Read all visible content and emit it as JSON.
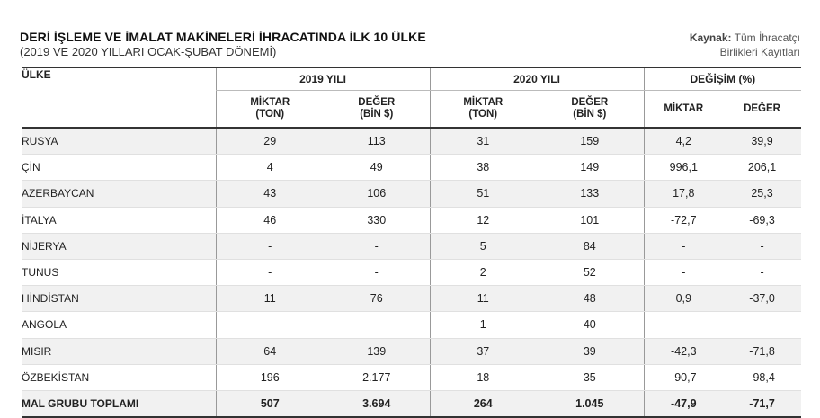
{
  "title": "DERİ İŞLEME VE İMALAT MAKİNELERİ İHRACATINDA İLK 10 ÜLKE",
  "subtitle": "(2019 VE 2020 YILLARI OCAK-ŞUBAT DÖNEMİ)",
  "source": {
    "label": "Kaynak:",
    "line1": "Tüm İhracatçı",
    "line2": "Birlikleri Kayıtları"
  },
  "headers": {
    "country": "ÜLKE",
    "year2019": "2019 YILI",
    "year2020": "2020 YILI",
    "change": "DEĞİŞİM (%)",
    "qty_line1": "MİKTAR",
    "qty_line2": "(TON)",
    "val_line1": "DEĞER",
    "val_line2": "(BİN $)",
    "chg_qty": "MİKTAR",
    "chg_val": "DEĞER"
  },
  "rows": [
    {
      "country": "RUSYA",
      "q2019": "29",
      "v2019": "113",
      "q2020": "31",
      "v2020": "159",
      "cq": "4,2",
      "cv": "39,9"
    },
    {
      "country": "ÇİN",
      "q2019": "4",
      "v2019": "49",
      "q2020": "38",
      "v2020": "149",
      "cq": "996,1",
      "cv": "206,1"
    },
    {
      "country": "AZERBAYCAN",
      "q2019": "43",
      "v2019": "106",
      "q2020": "51",
      "v2020": "133",
      "cq": "17,8",
      "cv": "25,3"
    },
    {
      "country": "İTALYA",
      "q2019": "46",
      "v2019": "330",
      "q2020": "12",
      "v2020": "101",
      "cq": "-72,7",
      "cv": "-69,3"
    },
    {
      "country": "NİJERYA",
      "q2019": "-",
      "v2019": "-",
      "q2020": "5",
      "v2020": "84",
      "cq": "-",
      "cv": "-"
    },
    {
      "country": "TUNUS",
      "q2019": "-",
      "v2019": "-",
      "q2020": "2",
      "v2020": "52",
      "cq": "-",
      "cv": "-"
    },
    {
      "country": "HİNDİSTAN",
      "q2019": "11",
      "v2019": "76",
      "q2020": "11",
      "v2020": "48",
      "cq": "0,9",
      "cv": "-37,0"
    },
    {
      "country": "ANGOLA",
      "q2019": "-",
      "v2019": "-",
      "q2020": "1",
      "v2020": "40",
      "cq": "-",
      "cv": "-"
    },
    {
      "country": "MISIR",
      "q2019": "64",
      "v2019": "139",
      "q2020": "37",
      "v2020": "39",
      "cq": "-42,3",
      "cv": "-71,8"
    },
    {
      "country": "ÖZBEKİSTAN",
      "q2019": "196",
      "v2019": "2.177",
      "q2020": "18",
      "v2020": "35",
      "cq": "-90,7",
      "cv": "-98,4"
    }
  ],
  "total": {
    "country": "MAL GRUBU TOPLAMI",
    "q2019": "507",
    "v2019": "3.694",
    "q2020": "264",
    "v2020": "1.045",
    "cq": "-47,9",
    "cv": "-71,7"
  }
}
